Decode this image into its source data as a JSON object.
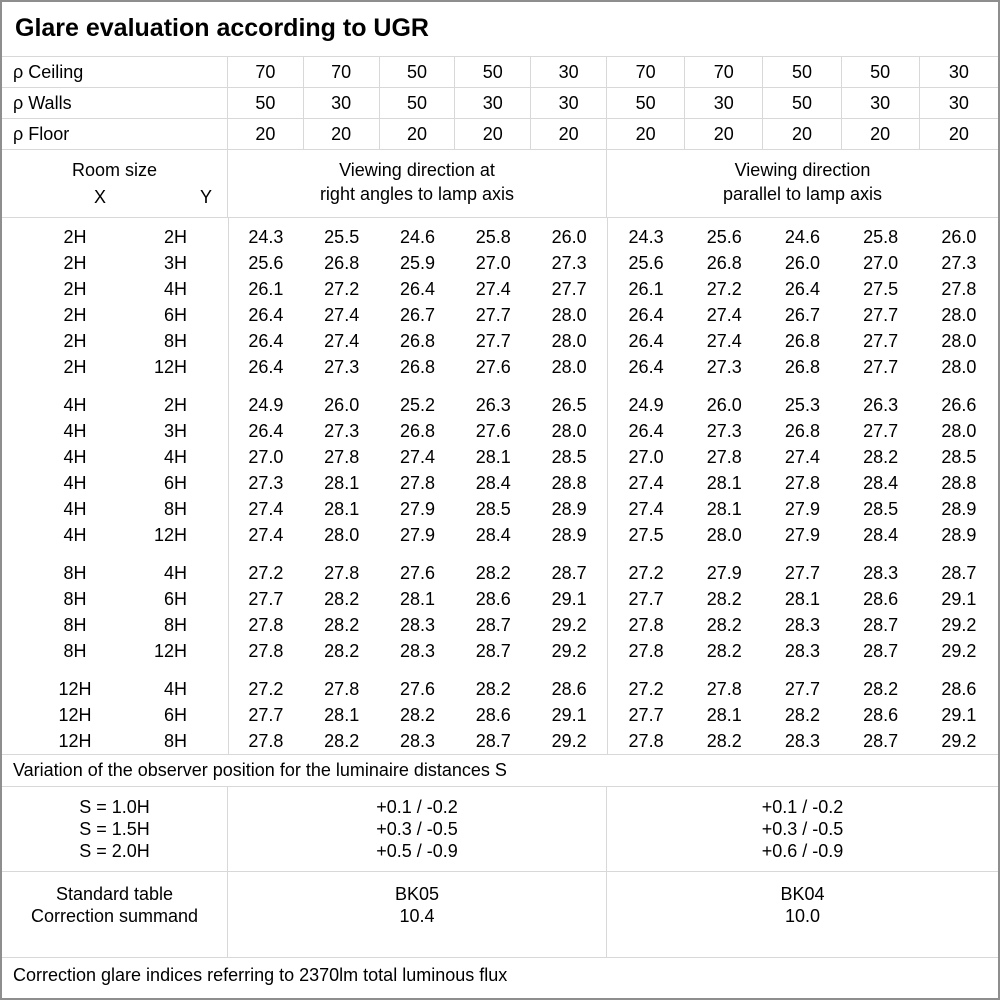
{
  "title": "Glare evaluation according to UGR",
  "colors": {
    "grid": "#d8d8d8",
    "frame": "#8e8e8e",
    "text": "#000000",
    "background": "#ffffff"
  },
  "reflectance_rows": [
    [
      "ρ Ceiling",
      "70",
      "70",
      "50",
      "50",
      "30",
      "70",
      "70",
      "50",
      "50",
      "30"
    ],
    [
      "ρ Walls",
      "50",
      "30",
      "50",
      "30",
      "30",
      "50",
      "30",
      "50",
      "30",
      "30"
    ],
    [
      "ρ Floor",
      "20",
      "20",
      "20",
      "20",
      "20",
      "20",
      "20",
      "20",
      "20",
      "20"
    ]
  ],
  "header": {
    "room_size": "Room size",
    "x": "X",
    "y": "Y",
    "left_line1": "Viewing direction at",
    "left_line2": "right angles to lamp axis",
    "right_line1": "Viewing direction",
    "right_line2": "parallel to lamp axis"
  },
  "ugr_rows": [
    [
      "2H",
      "2H",
      "24.3",
      "25.5",
      "24.6",
      "25.8",
      "26.0",
      "24.3",
      "25.6",
      "24.6",
      "25.8",
      "26.0"
    ],
    [
      "2H",
      "3H",
      "25.6",
      "26.8",
      "25.9",
      "27.0",
      "27.3",
      "25.6",
      "26.8",
      "26.0",
      "27.0",
      "27.3"
    ],
    [
      "2H",
      "4H",
      "26.1",
      "27.2",
      "26.4",
      "27.4",
      "27.7",
      "26.1",
      "27.2",
      "26.4",
      "27.5",
      "27.8"
    ],
    [
      "2H",
      "6H",
      "26.4",
      "27.4",
      "26.7",
      "27.7",
      "28.0",
      "26.4",
      "27.4",
      "26.7",
      "27.7",
      "28.0"
    ],
    [
      "2H",
      "8H",
      "26.4",
      "27.4",
      "26.8",
      "27.7",
      "28.0",
      "26.4",
      "27.4",
      "26.8",
      "27.7",
      "28.0"
    ],
    [
      "2H",
      "12H",
      "26.4",
      "27.3",
      "26.8",
      "27.6",
      "28.0",
      "26.4",
      "27.3",
      "26.8",
      "27.7",
      "28.0"
    ],
    [],
    [
      "4H",
      "2H",
      "24.9",
      "26.0",
      "25.2",
      "26.3",
      "26.5",
      "24.9",
      "26.0",
      "25.3",
      "26.3",
      "26.6"
    ],
    [
      "4H",
      "3H",
      "26.4",
      "27.3",
      "26.8",
      "27.6",
      "28.0",
      "26.4",
      "27.3",
      "26.8",
      "27.7",
      "28.0"
    ],
    [
      "4H",
      "4H",
      "27.0",
      "27.8",
      "27.4",
      "28.1",
      "28.5",
      "27.0",
      "27.8",
      "27.4",
      "28.2",
      "28.5"
    ],
    [
      "4H",
      "6H",
      "27.3",
      "28.1",
      "27.8",
      "28.4",
      "28.8",
      "27.4",
      "28.1",
      "27.8",
      "28.4",
      "28.8"
    ],
    [
      "4H",
      "8H",
      "27.4",
      "28.1",
      "27.9",
      "28.5",
      "28.9",
      "27.4",
      "28.1",
      "27.9",
      "28.5",
      "28.9"
    ],
    [
      "4H",
      "12H",
      "27.4",
      "28.0",
      "27.9",
      "28.4",
      "28.9",
      "27.5",
      "28.0",
      "27.9",
      "28.4",
      "28.9"
    ],
    [],
    [
      "8H",
      "4H",
      "27.2",
      "27.8",
      "27.6",
      "28.2",
      "28.7",
      "27.2",
      "27.9",
      "27.7",
      "28.3",
      "28.7"
    ],
    [
      "8H",
      "6H",
      "27.7",
      "28.2",
      "28.1",
      "28.6",
      "29.1",
      "27.7",
      "28.2",
      "28.1",
      "28.6",
      "29.1"
    ],
    [
      "8H",
      "8H",
      "27.8",
      "28.2",
      "28.3",
      "28.7",
      "29.2",
      "27.8",
      "28.2",
      "28.3",
      "28.7",
      "29.2"
    ],
    [
      "8H",
      "12H",
      "27.8",
      "28.2",
      "28.3",
      "28.7",
      "29.2",
      "27.8",
      "28.2",
      "28.3",
      "28.7",
      "29.2"
    ],
    [],
    [
      "12H",
      "4H",
      "27.2",
      "27.8",
      "27.6",
      "28.2",
      "28.6",
      "27.2",
      "27.8",
      "27.7",
      "28.2",
      "28.6"
    ],
    [
      "12H",
      "6H",
      "27.7",
      "28.1",
      "28.2",
      "28.6",
      "29.1",
      "27.7",
      "28.1",
      "28.2",
      "28.6",
      "29.1"
    ],
    [
      "12H",
      "8H",
      "27.8",
      "28.2",
      "28.3",
      "28.7",
      "29.2",
      "27.8",
      "28.2",
      "28.3",
      "28.7",
      "29.2"
    ]
  ],
  "variation_note": "Variation of the observer position for the luminaire distances S",
  "variation": {
    "labels": [
      "S = 1.0H",
      "S = 1.5H",
      "S = 2.0H"
    ],
    "left": [
      "+0.1 / -0.2",
      "+0.3 / -0.5",
      "+0.5 / -0.9"
    ],
    "right": [
      "+0.1 / -0.2",
      "+0.3 / -0.5",
      "+0.6 / -0.9"
    ]
  },
  "standard": {
    "labels": [
      "Standard table",
      "Correction summand"
    ],
    "left": [
      "BK05",
      "10.4"
    ],
    "right": [
      "BK04",
      "10.0"
    ]
  },
  "footer": "Correction glare indices referring to 2370lm total luminous flux"
}
